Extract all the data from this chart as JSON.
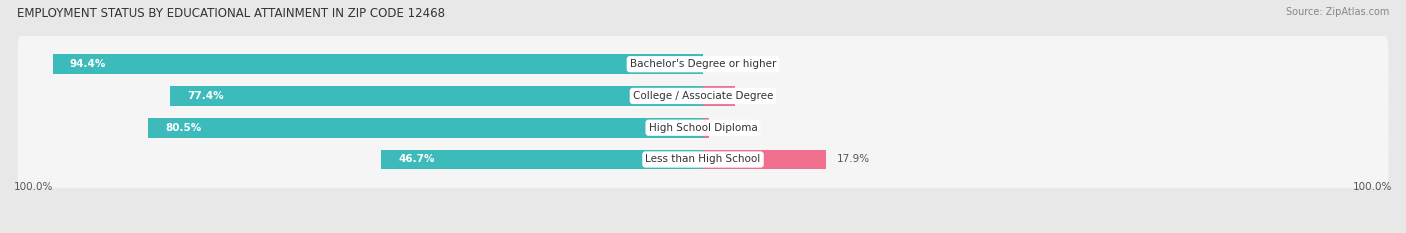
{
  "title": "EMPLOYMENT STATUS BY EDUCATIONAL ATTAINMENT IN ZIP CODE 12468",
  "source": "Source: ZipAtlas.com",
  "categories": [
    "Less than High School",
    "High School Diploma",
    "College / Associate Degree",
    "Bachelor's Degree or higher"
  ],
  "labor_force": [
    46.7,
    80.5,
    77.4,
    94.4
  ],
  "unemployed": [
    17.9,
    0.9,
    4.7,
    0.0
  ],
  "labor_color": "#3DBBBB",
  "unemployed_color": "#F07090",
  "bg_color": "#e8e8e8",
  "bar_bg_color": "#f5f5f5",
  "bar_height": 0.62,
  "title_fontsize": 8.5,
  "source_fontsize": 7,
  "value_fontsize": 7.5,
  "cat_fontsize": 7.5,
  "legend_fontsize": 7.5,
  "axis_label_fontsize": 7.5
}
